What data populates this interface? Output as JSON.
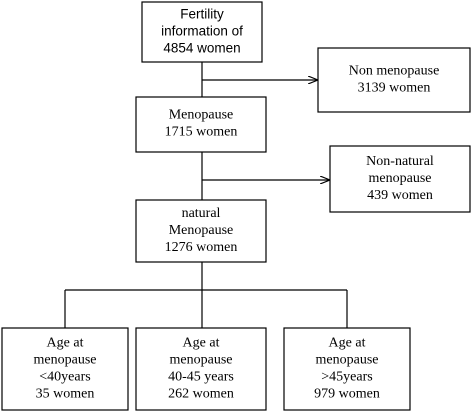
{
  "nodes": [
    {
      "lines": [
        "Fertility",
        "information of",
        "4854 women"
      ]
    },
    {
      "lines": [
        "Non menopause",
        "3139 women"
      ]
    },
    {
      "lines": [
        "Menopause",
        "1715  women"
      ]
    },
    {
      "lines": [
        "Non-natural",
        "menopause",
        "439 women"
      ]
    },
    {
      "lines": [
        "natural",
        "Menopause",
        "1276 women"
      ]
    },
    {
      "lines": [
        "Age at",
        "menopause",
        "<40years",
        "35 women"
      ]
    },
    {
      "lines": [
        "Age at",
        "menopause",
        "40-45 years",
        "262 women"
      ]
    },
    {
      "lines": [
        "Age at",
        "menopause",
        ">45years",
        "979  women"
      ]
    }
  ]
}
